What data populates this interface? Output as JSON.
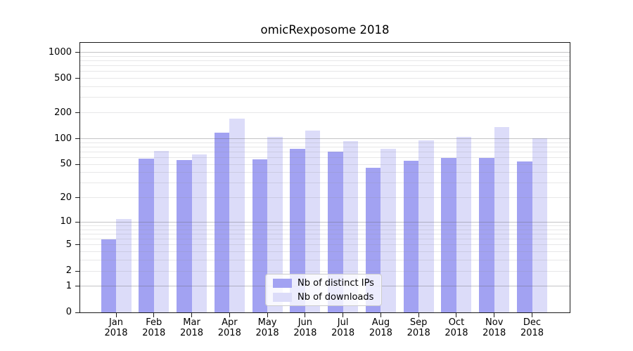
{
  "title": "omicRexposome 2018",
  "chart_data": {
    "type": "bar",
    "title": "omicRexposome 2018",
    "y_scale": "log1p",
    "grid": true,
    "legend_position": "lower center",
    "categories": [
      "Jan",
      "Feb",
      "Mar",
      "Apr",
      "May",
      "Jun",
      "Jul",
      "Aug",
      "Sep",
      "Oct",
      "Nov",
      "Dec"
    ],
    "year_label": "2018",
    "series": [
      {
        "name": "Nb of distinct IPs",
        "color": "#a2a2f2",
        "values": [
          6,
          58,
          56,
          118,
          57,
          76,
          70,
          46,
          55,
          60,
          59,
          54
        ]
      },
      {
        "name": "Nb of downloads",
        "color": "#dcdcf9",
        "values": [
          11,
          72,
          66,
          170,
          104,
          124,
          93,
          76,
          95,
          105,
          136,
          101
        ]
      }
    ],
    "y_ticks": [
      0,
      1,
      2,
      5,
      10,
      20,
      50,
      100,
      200,
      500,
      1000
    ],
    "y_major_gridlines": [
      1,
      10,
      100,
      1000
    ],
    "y_minor_gridlines": [
      2,
      3,
      4,
      5,
      6,
      7,
      8,
      9,
      20,
      30,
      40,
      50,
      60,
      70,
      80,
      90,
      200,
      300,
      400,
      500,
      600,
      700,
      800,
      900
    ],
    "ylim": [
      0,
      1287
    ]
  },
  "colors": {
    "bar_distinct_ips": "#a2a2f2",
    "bar_downloads": "#dcdcf9",
    "grid_major": "#c6c6c8",
    "grid_minor": "#dededf",
    "axis": "#1a1a1a",
    "background": "#ffffff"
  }
}
